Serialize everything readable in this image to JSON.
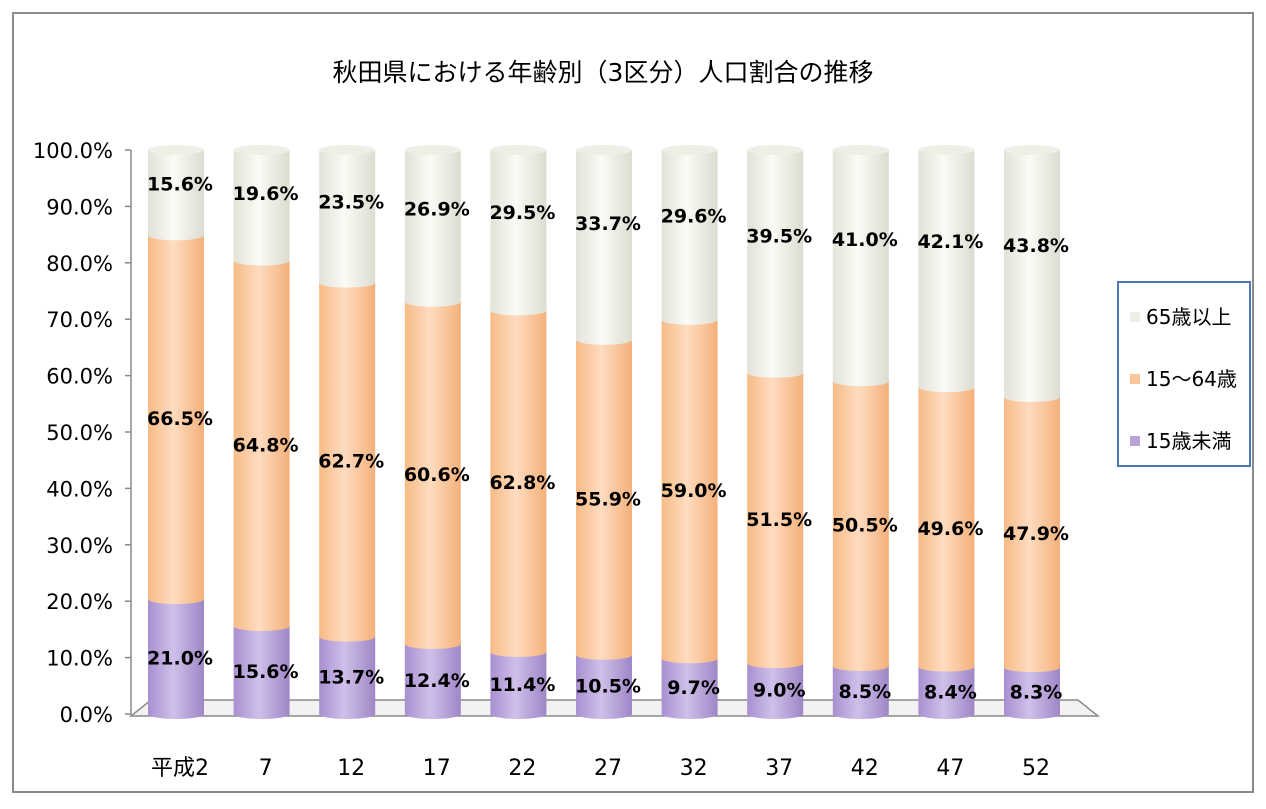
{
  "chart_data": {
    "type": "bar",
    "stacked": true,
    "percent_stacked": true,
    "title": "秋田県における年齢別（3区分）人口割合の推移",
    "xlabel": "",
    "ylabel": "",
    "ylim": [
      0,
      100
    ],
    "y_ticks": [
      "0.0%",
      "10.0%",
      "20.0%",
      "30.0%",
      "40.0%",
      "50.0%",
      "60.0%",
      "70.0%",
      "80.0%",
      "90.0%",
      "100.0%"
    ],
    "categories": [
      "平成2",
      "7",
      "12",
      "17",
      "22",
      "27",
      "32",
      "37",
      "42",
      "47",
      "52"
    ],
    "series": [
      {
        "name": "15歳未満",
        "color": "#b8a2d8",
        "values": [
          21.0,
          15.6,
          13.7,
          12.4,
          11.4,
          10.5,
          9.7,
          9.0,
          8.5,
          8.4,
          8.3
        ]
      },
      {
        "name": "15～64歳",
        "color": "#fbc79a",
        "values": [
          66.5,
          64.8,
          62.7,
          60.6,
          62.8,
          55.9,
          59.0,
          51.5,
          50.5,
          49.6,
          47.9
        ]
      },
      {
        "name": "65歳以上",
        "color": "#eeeee6",
        "values": [
          15.6,
          19.6,
          23.5,
          26.9,
          29.5,
          33.7,
          29.6,
          39.5,
          41.0,
          42.1,
          43.8
        ]
      }
    ],
    "data_labels": [
      [
        "21.0%",
        "15.6%",
        "13.7%",
        "12.4%",
        "11.4%",
        "10.5%",
        "9.7%",
        "9.0%",
        "8.5%",
        "8.4%",
        "8.3%"
      ],
      [
        "66.5%",
        "64.8%",
        "62.7%",
        "60.6%",
        "62.8%",
        "55.9%",
        "59.0%",
        "51.5%",
        "50.5%",
        "49.6%",
        "47.9%"
      ],
      [
        "15.6%",
        "19.6%",
        "23.5%",
        "26.9%",
        "29.5%",
        "33.7%",
        "29.6%",
        "39.5%",
        "41.0%",
        "42.1%",
        "43.8%"
      ]
    ],
    "legend": {
      "position": "right",
      "items": [
        "65歳以上",
        "15～64歳",
        "15歳未満"
      ]
    },
    "grid": false,
    "bar_shape": "cylinder"
  }
}
